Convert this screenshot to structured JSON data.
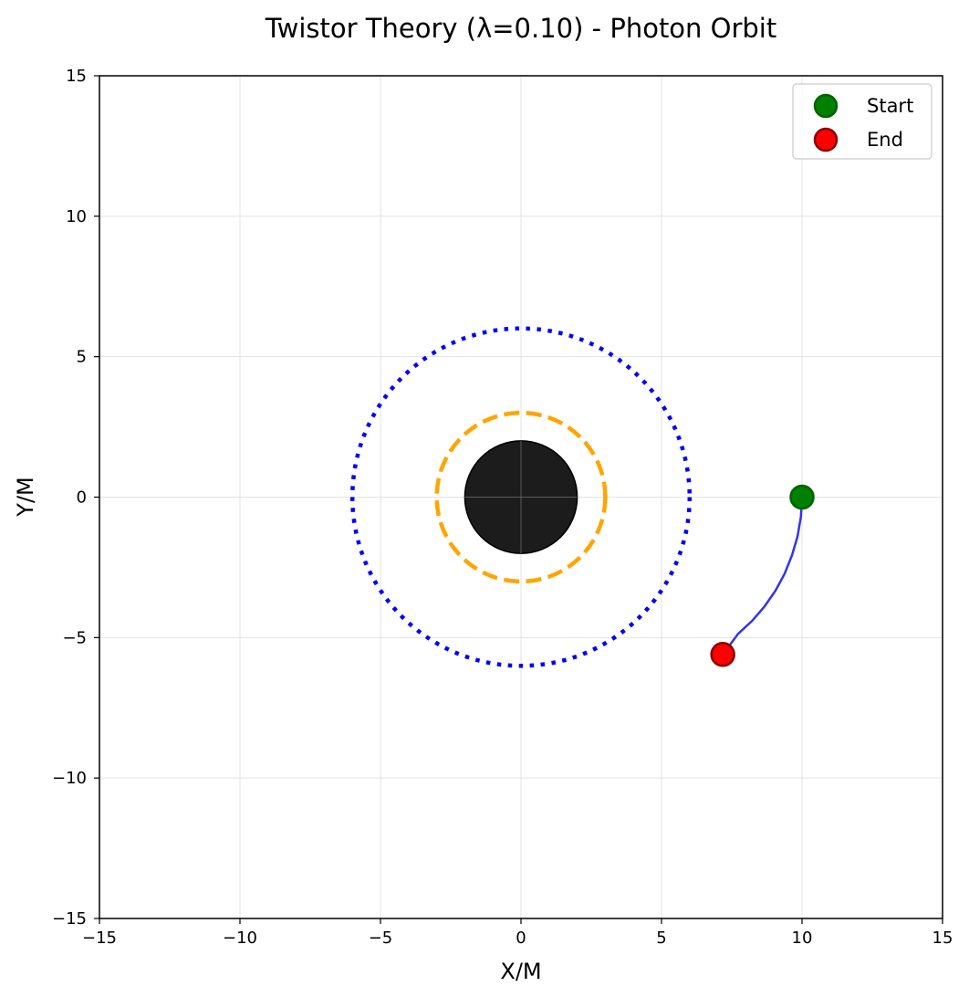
{
  "chart_data": {
    "type": "scatter",
    "title": "Twistor Theory (λ=0.10) - Photon Orbit",
    "xlabel": "X/M",
    "ylabel": "Y/M",
    "xlim": [
      -15,
      15
    ],
    "ylim": [
      -15,
      15
    ],
    "xticks": [
      -15,
      -10,
      -5,
      0,
      5,
      10,
      15
    ],
    "yticks": [
      -15,
      -10,
      -5,
      0,
      5,
      10,
      15
    ],
    "xtick_labels": [
      "−15",
      "−10",
      "−5",
      "0",
      "5",
      "10",
      "15"
    ],
    "ytick_labels": [
      "−15",
      "−10",
      "−5",
      "0",
      "5",
      "10",
      "15"
    ],
    "grid": true,
    "legend": {
      "placement": "top-right",
      "entries": [
        {
          "label": "Start",
          "color": "#008000",
          "edge": "#006400"
        },
        {
          "label": "End",
          "color": "#ff0000",
          "edge": "#8b0000"
        }
      ]
    },
    "horizon": {
      "radius": 2.0,
      "color": "#1c1c1c"
    },
    "photon_sphere": {
      "radius": 3.0,
      "color": "#ffa500",
      "style": "dashed"
    },
    "isco": {
      "radius": 6.0,
      "color": "#0000ff",
      "style": "dotted"
    },
    "orbit": {
      "color": "#3333ee",
      "x": [
        10.0,
        9.96,
        9.84,
        9.64,
        9.38,
        9.05,
        8.66,
        8.22,
        7.73,
        7.18
      ],
      "y": [
        0.0,
        -0.7,
        -1.4,
        -2.08,
        -2.73,
        -3.34,
        -3.9,
        -4.41,
        -4.86,
        -5.6
      ]
    },
    "start_point": {
      "x": 10.0,
      "y": 0.0
    },
    "end_point": {
      "x": 7.18,
      "y": -5.6
    }
  }
}
